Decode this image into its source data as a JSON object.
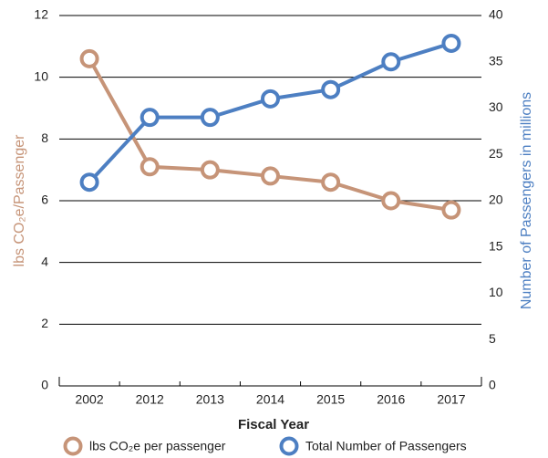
{
  "chart_data": {
    "type": "line",
    "categories": [
      "2002",
      "2012",
      "2013",
      "2014",
      "2015",
      "2016",
      "2017"
    ],
    "xlabel": "Fiscal Year",
    "ylabel": "lbs CO₂e/Passenger",
    "y2label": "Number of Passengers in millions",
    "ylim": [
      0,
      12
    ],
    "yticks": [
      0,
      2,
      4,
      6,
      8,
      10,
      12
    ],
    "y2lim": [
      0,
      40
    ],
    "y2ticks": [
      0,
      5,
      10,
      15,
      20,
      25,
      30,
      35,
      40
    ],
    "grid": true,
    "legend": "bottom",
    "series": [
      {
        "name": "lbs CO₂e per passenger",
        "color": "#c69478",
        "values": [
          10.6,
          7.1,
          7.0,
          6.8,
          6.6,
          6.0,
          5.7
        ]
      },
      {
        "name": "Total Number of Passengers",
        "color": "#4d7fc2",
        "axis": "y2",
        "values": [
          22,
          29,
          29,
          31,
          32,
          35,
          37
        ]
      }
    ]
  }
}
